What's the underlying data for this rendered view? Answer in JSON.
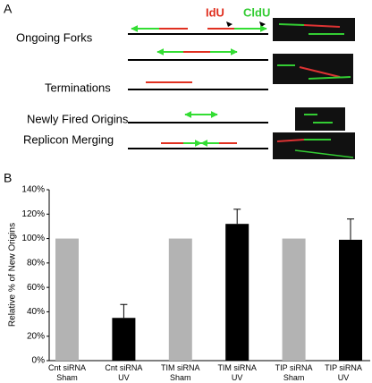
{
  "panel_a": {
    "label": "A",
    "idu": "IdU",
    "cldu": "CldU",
    "rows": [
      "Ongoing Forks",
      "Terminations",
      "Newly Fired Origins",
      "Replicon Merging"
    ]
  },
  "chart_data": {
    "type": "bar",
    "panel_label": "B",
    "y_label": "Relative % of New Origins",
    "categories": [
      "Cnt siRNA\nSham",
      "Cnt siRNA\nUV",
      "TIM siRNA\nSham",
      "TIM siRNA\nUV",
      "TIP siRNA\nSham",
      "TIP siRNA\nUV"
    ],
    "values": [
      100,
      35,
      100,
      112,
      100,
      99
    ],
    "errors": [
      0,
      11,
      0,
      12,
      0,
      17
    ],
    "colors": [
      "#b3b3b3",
      "#000000",
      "#b3b3b3",
      "#000000",
      "#b3b3b3",
      "#000000"
    ],
    "ylim": [
      0,
      140
    ],
    "yticks": [
      {
        "value": 0,
        "label": "0%"
      },
      {
        "value": 20,
        "label": "20%"
      },
      {
        "value": 40,
        "label": "40%"
      },
      {
        "value": 60,
        "label": "60%"
      },
      {
        "value": 80,
        "label": "80%"
      },
      {
        "value": 100,
        "label": "100%"
      },
      {
        "value": 120,
        "label": "120%"
      },
      {
        "value": 140,
        "label": "140%"
      }
    ]
  }
}
